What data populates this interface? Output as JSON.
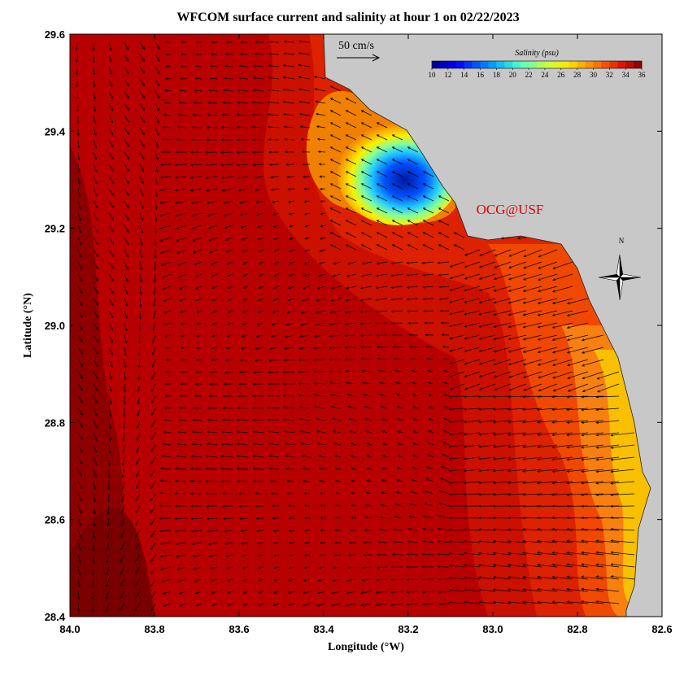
{
  "title": "WFCOM surface current and salinity at hour 1 on 02/22/2023",
  "x_axis": {
    "label": "Longitude (°W)",
    "lim": [
      84,
      82.6
    ],
    "ticks": [
      {
        "value": 84,
        "label": "84.0"
      },
      83.8,
      83.6,
      83.4,
      83.2,
      {
        "value": 83,
        "label": "83.0"
      },
      82.8,
      82.6
    ]
  },
  "y_axis": {
    "label": "Latitude (°N)",
    "lim": [
      28.4,
      29.6
    ],
    "ticks": [
      28.4,
      28.6,
      28.8,
      {
        "value": 29,
        "label": "29.0"
      },
      29.2,
      29.4,
      29.6
    ]
  },
  "scale_arrow": {
    "label": "50 cm/s"
  },
  "colorbar": {
    "title": "Salinity (psu)",
    "range": [
      10,
      36
    ],
    "ticks": [
      10,
      12,
      14,
      16,
      18,
      20,
      22,
      24,
      26,
      28,
      30,
      32,
      34,
      36
    ]
  },
  "credit": "OCG@USF",
  "compass": "N"
}
